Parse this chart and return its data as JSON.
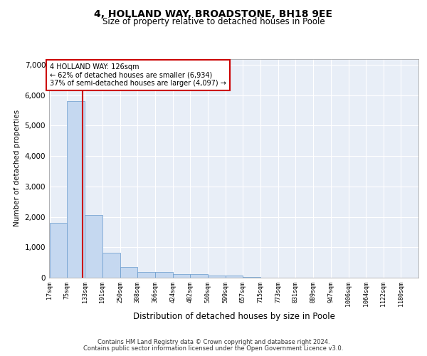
{
  "title_line1": "4, HOLLAND WAY, BROADSTONE, BH18 9EE",
  "title_line2": "Size of property relative to detached houses in Poole",
  "xlabel": "Distribution of detached houses by size in Poole",
  "ylabel": "Number of detached properties",
  "bar_edges": [
    17,
    75,
    133,
    191,
    250,
    308,
    366,
    424,
    482,
    540,
    599,
    657,
    715,
    773,
    831,
    889,
    947,
    1006,
    1064,
    1122,
    1180
  ],
  "bar_heights": [
    1800,
    5800,
    2050,
    820,
    340,
    195,
    180,
    115,
    115,
    80,
    80,
    20,
    10,
    5,
    5,
    2,
    2,
    1,
    1,
    1
  ],
  "bar_color": "#c5d8f0",
  "bar_edge_color": "#6699cc",
  "vline_x": 126,
  "vline_color": "#cc0000",
  "annotation_text": "4 HOLLAND WAY: 126sqm\n← 62% of detached houses are smaller (6,934)\n37% of semi-detached houses are larger (4,097) →",
  "annotation_box_color": "#cc0000",
  "ylim": [
    0,
    7200
  ],
  "yticks": [
    0,
    1000,
    2000,
    3000,
    4000,
    5000,
    6000,
    7000
  ],
  "footer_line1": "Contains HM Land Registry data © Crown copyright and database right 2024.",
  "footer_line2": "Contains public sector information licensed under the Open Government Licence v3.0.",
  "plot_bg_color": "#e8eef7"
}
